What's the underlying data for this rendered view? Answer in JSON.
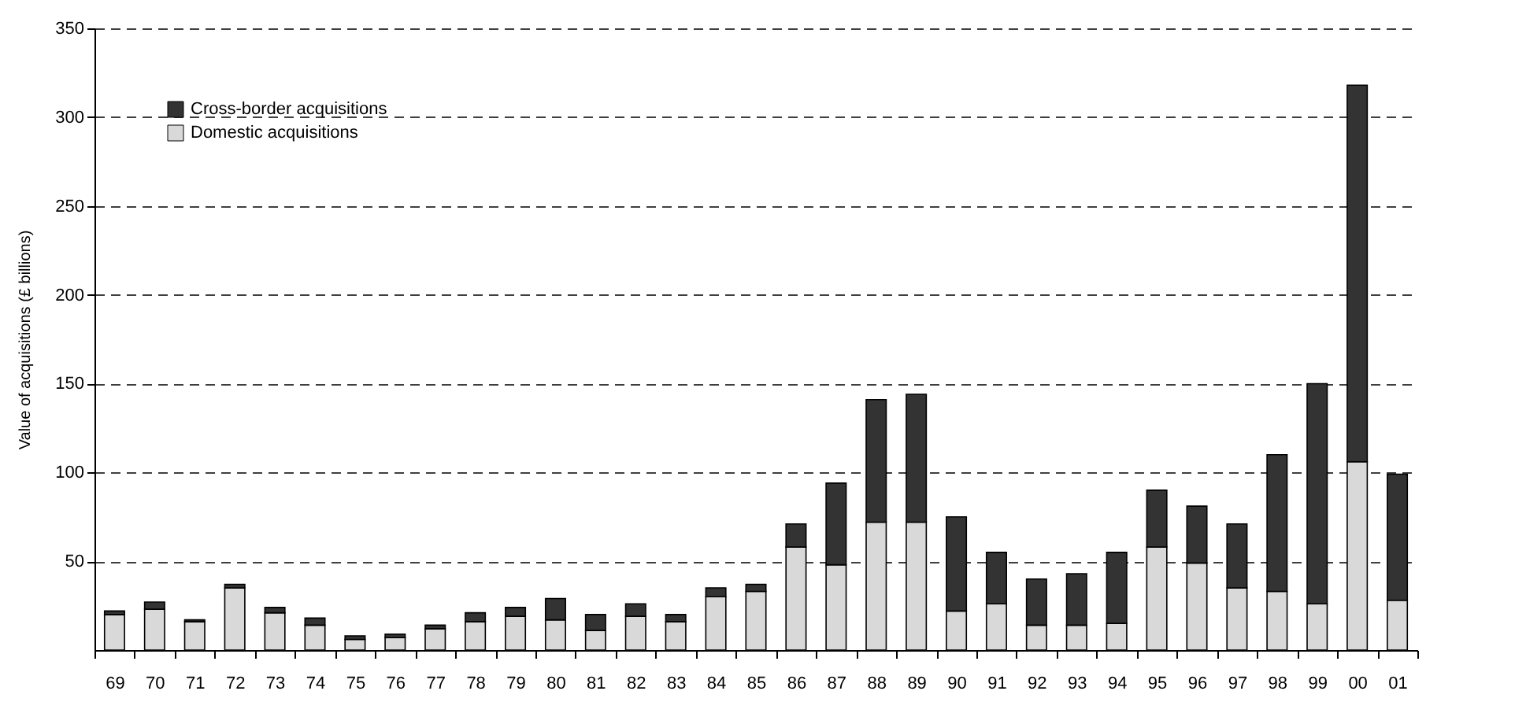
{
  "chart_data": {
    "type": "bar",
    "stacked": true,
    "ylabel": "Value of acquisitions (£ billions)",
    "categories": [
      "69",
      "70",
      "71",
      "72",
      "73",
      "74",
      "75",
      "76",
      "77",
      "78",
      "79",
      "80",
      "81",
      "82",
      "83",
      "84",
      "85",
      "86",
      "87",
      "88",
      "89",
      "90",
      "91",
      "92",
      "93",
      "94",
      "95",
      "96",
      "97",
      "98",
      "99",
      "00",
      "01"
    ],
    "series": [
      {
        "name": "Domestic acquisitions",
        "color": "#d9d9d9",
        "values": [
          20,
          23,
          16,
          35,
          21,
          14,
          6,
          7,
          12,
          16,
          19,
          17,
          11,
          19,
          16,
          30,
          33,
          58,
          48,
          72,
          72,
          22,
          26,
          14,
          14,
          15,
          58,
          49,
          35,
          33,
          26,
          106,
          28
        ]
      },
      {
        "name": "Cross-border acquisitions",
        "color": "#333333",
        "values": [
          2,
          4,
          1,
          2,
          3,
          4,
          2,
          2,
          2,
          5,
          5,
          12,
          9,
          7,
          4,
          5,
          4,
          13,
          46,
          69,
          72,
          53,
          29,
          26,
          29,
          40,
          32,
          32,
          36,
          77,
          124,
          212,
          71
        ]
      }
    ],
    "ylim": [
      0,
      350
    ],
    "yticks": [
      50,
      100,
      150,
      200,
      250,
      300,
      350
    ],
    "grid": "y",
    "legend": "top left"
  }
}
